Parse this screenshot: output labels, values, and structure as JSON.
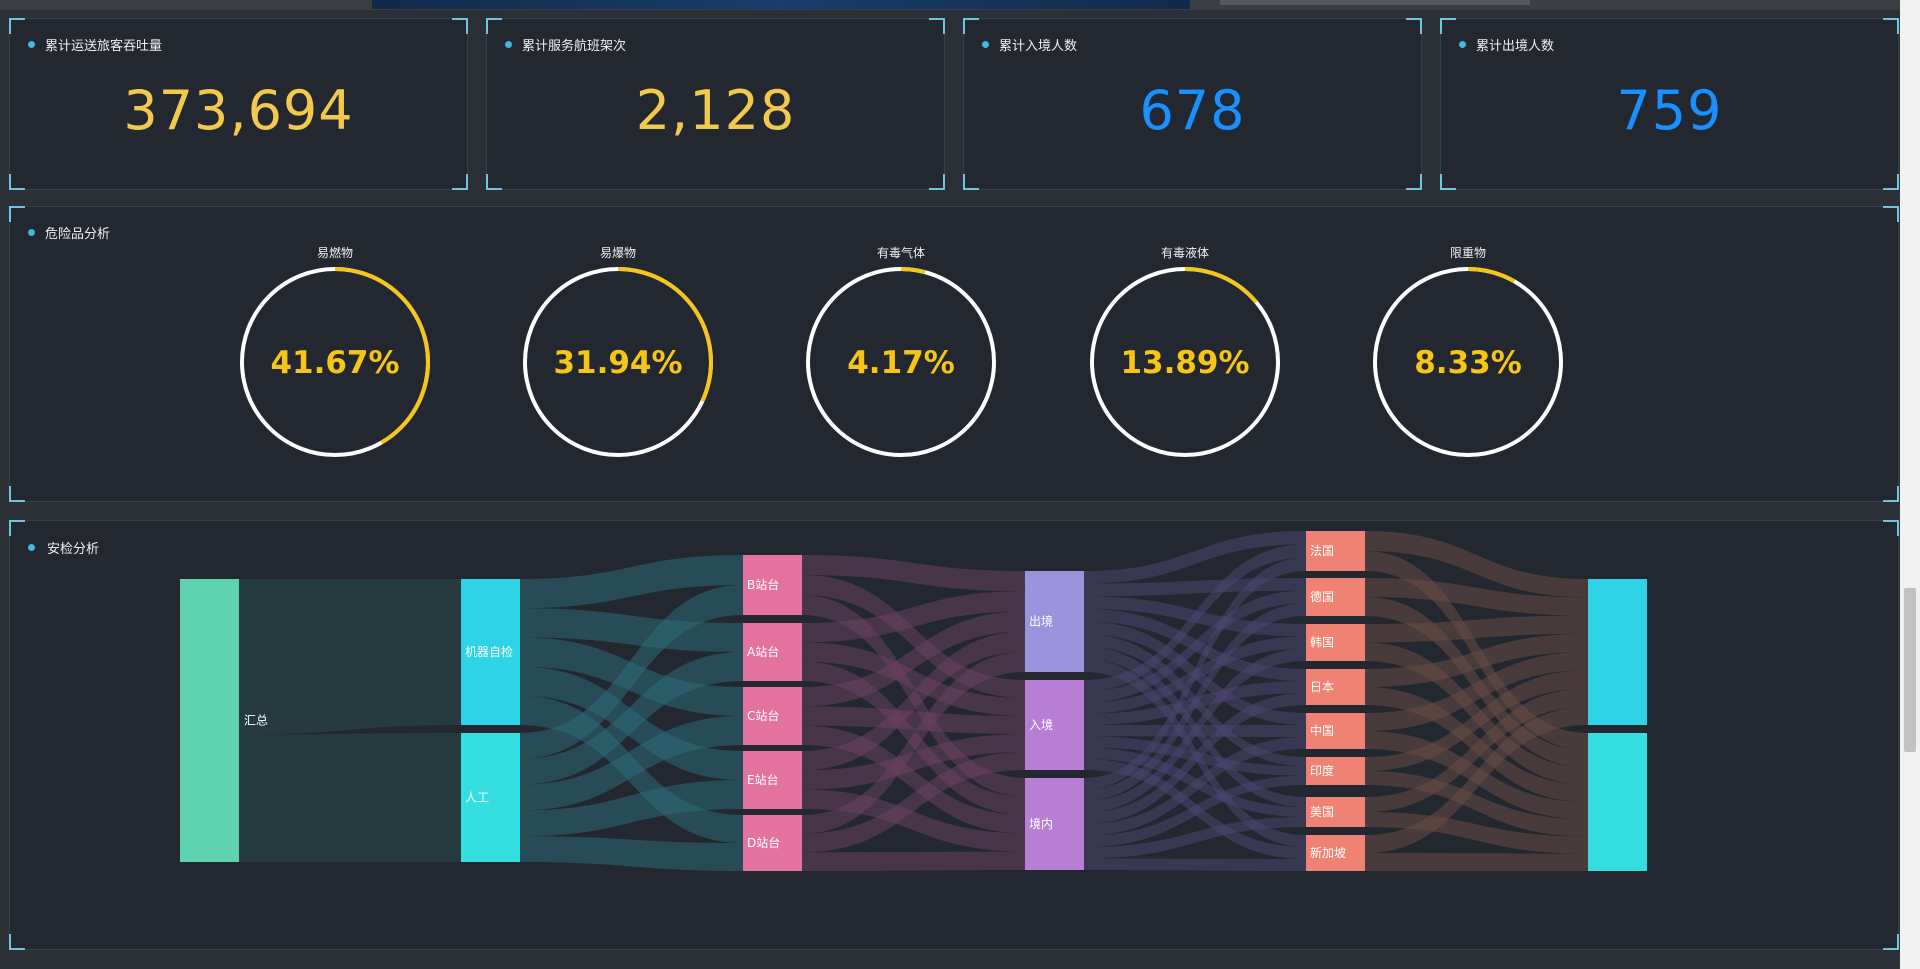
{
  "stats": [
    {
      "title": "累计运送旅客吞吐量",
      "value": "373,694",
      "color": "#f2c94c"
    },
    {
      "title": "累计服务航班架次",
      "value": "2,128",
      "color": "#f2c94c"
    },
    {
      "title": "累计入境人数",
      "value": "678",
      "color": "#1890ff"
    },
    {
      "title": "累计出境人数",
      "value": "759",
      "color": "#1890ff"
    }
  ],
  "hazard": {
    "title": "危险品分析",
    "gauges": [
      {
        "label": "易燃物",
        "percent": 41.67,
        "text": "41.67%"
      },
      {
        "label": "易爆物",
        "percent": 31.94,
        "text": "31.94%"
      },
      {
        "label": "有毒气体",
        "percent": 4.17,
        "text": "4.17%"
      },
      {
        "label": "有毒液体",
        "percent": 13.89,
        "text": "13.89%"
      },
      {
        "label": "限重物",
        "percent": 8.33,
        "text": "8.33%"
      }
    ],
    "accent": "#f5c518"
  },
  "security": {
    "title": "安检分析",
    "nodes": [
      {
        "id": "total",
        "label": "汇总",
        "color": "#5fd3b0"
      },
      {
        "id": "machine",
        "label": "机器自检",
        "color": "#2ed3e6"
      },
      {
        "id": "manual",
        "label": "人工",
        "color": "#34dde0"
      },
      {
        "id": "B",
        "label": "B站台",
        "color": "#e3729e"
      },
      {
        "id": "A",
        "label": "A站台",
        "color": "#e3729e"
      },
      {
        "id": "C",
        "label": "C站台",
        "color": "#e3729e"
      },
      {
        "id": "E",
        "label": "E站台",
        "color": "#e3729e"
      },
      {
        "id": "D",
        "label": "D站台",
        "color": "#e3729e"
      },
      {
        "id": "out",
        "label": "出境",
        "color": "#9b93dc"
      },
      {
        "id": "in",
        "label": "入境",
        "color": "#b77ed6"
      },
      {
        "id": "dom",
        "label": "境内",
        "color": "#b77ed6"
      },
      {
        "id": "fr",
        "label": "法国",
        "color": "#ef8273"
      },
      {
        "id": "de",
        "label": "德国",
        "color": "#ef8273"
      },
      {
        "id": "kr",
        "label": "韩国",
        "color": "#ef8273"
      },
      {
        "id": "jp",
        "label": "日本",
        "color": "#ef8273"
      },
      {
        "id": "cn",
        "label": "中国",
        "color": "#ef8273"
      },
      {
        "id": "in2",
        "label": "印度",
        "color": "#ef8273"
      },
      {
        "id": "us",
        "label": "美国",
        "color": "#ef8273"
      },
      {
        "id": "sg",
        "label": "新加坡",
        "color": "#ef8273"
      },
      {
        "id": "r1",
        "label": "",
        "color": "#2ed3e6"
      },
      {
        "id": "r2",
        "label": "",
        "color": "#34dde0"
      }
    ]
  }
}
